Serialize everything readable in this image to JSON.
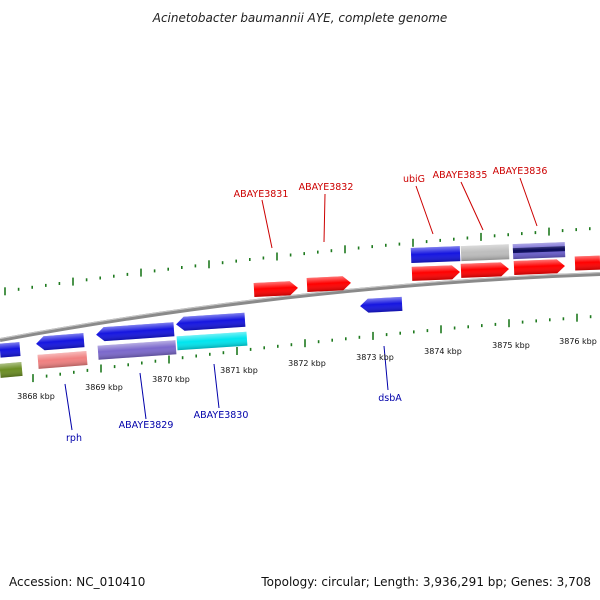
{
  "title": "Acinetobacter baumannii AYE, complete genome",
  "footer": {
    "accession": "Accession: NC_010410",
    "topology": "Topology: circular; Length: 3,936,291 bp; Genes: 3,708"
  },
  "colors": {
    "backbone": "#8a8a8a",
    "tick": "#1f7a1f",
    "label_forward": "#cc0000",
    "label_reverse": "#0000aa"
  },
  "kbp_labels": [
    "3868 kbp",
    "3869 kbp",
    "3870 kbp",
    "3871 kbp",
    "3872 kbp",
    "3873 kbp",
    "3874 kbp",
    "3875 kbp",
    "3876 kbp"
  ],
  "gene_labels": {
    "forward": [
      "ABAYE3831",
      "ABAYE3832",
      "ubiG",
      "ABAYE3835",
      "ABAYE3836"
    ],
    "reverse": [
      "rph",
      "ABAYE3829",
      "ABAYE3830",
      "dsbA"
    ]
  },
  "features": [
    {
      "id": "f1",
      "track": "reverse-cds",
      "color": "#1515e0",
      "direction": "left"
    },
    {
      "id": "f2",
      "track": "reverse-cds",
      "color": "#1515e0",
      "direction": "left"
    },
    {
      "id": "f3",
      "track": "reverse-cds",
      "color": "#1515e0",
      "direction": "left"
    },
    {
      "id": "f4",
      "track": "reverse-cds",
      "color": "#1515e0",
      "direction": "left"
    },
    {
      "id": "f5",
      "track": "reverse-cds",
      "color": "#1515e0",
      "direction": "left"
    },
    {
      "id": "f6",
      "track": "reverse-func",
      "color": "#6b8e23",
      "direction": "none"
    },
    {
      "id": "f7",
      "track": "reverse-func",
      "color": "#f08080",
      "direction": "none"
    },
    {
      "id": "f8",
      "track": "reverse-func",
      "color": "#7b68cc",
      "direction": "none"
    },
    {
      "id": "f9",
      "track": "reverse-func",
      "color": "#00e5ee",
      "direction": "none"
    },
    {
      "id": "f10",
      "track": "forward-cds",
      "color": "#ff0000",
      "direction": "right"
    },
    {
      "id": "f11",
      "track": "forward-cds",
      "color": "#ff0000",
      "direction": "right"
    },
    {
      "id": "f12",
      "track": "forward-cds",
      "color": "#ff0000",
      "direction": "right"
    },
    {
      "id": "f13",
      "track": "forward-cds",
      "color": "#ff0000",
      "direction": "right"
    },
    {
      "id": "f14",
      "track": "forward-cds",
      "color": "#ff0000",
      "direction": "right"
    },
    {
      "id": "f15",
      "track": "forward-cds",
      "color": "#ff0000",
      "direction": "right"
    },
    {
      "id": "f16",
      "track": "forward-func",
      "color": "#1515e0",
      "direction": "none"
    },
    {
      "id": "f17",
      "track": "forward-func",
      "color": "#bdbdbd",
      "direction": "none"
    },
    {
      "id": "f18",
      "track": "forward-func",
      "color": "#6b5fd0",
      "direction": "none"
    }
  ]
}
